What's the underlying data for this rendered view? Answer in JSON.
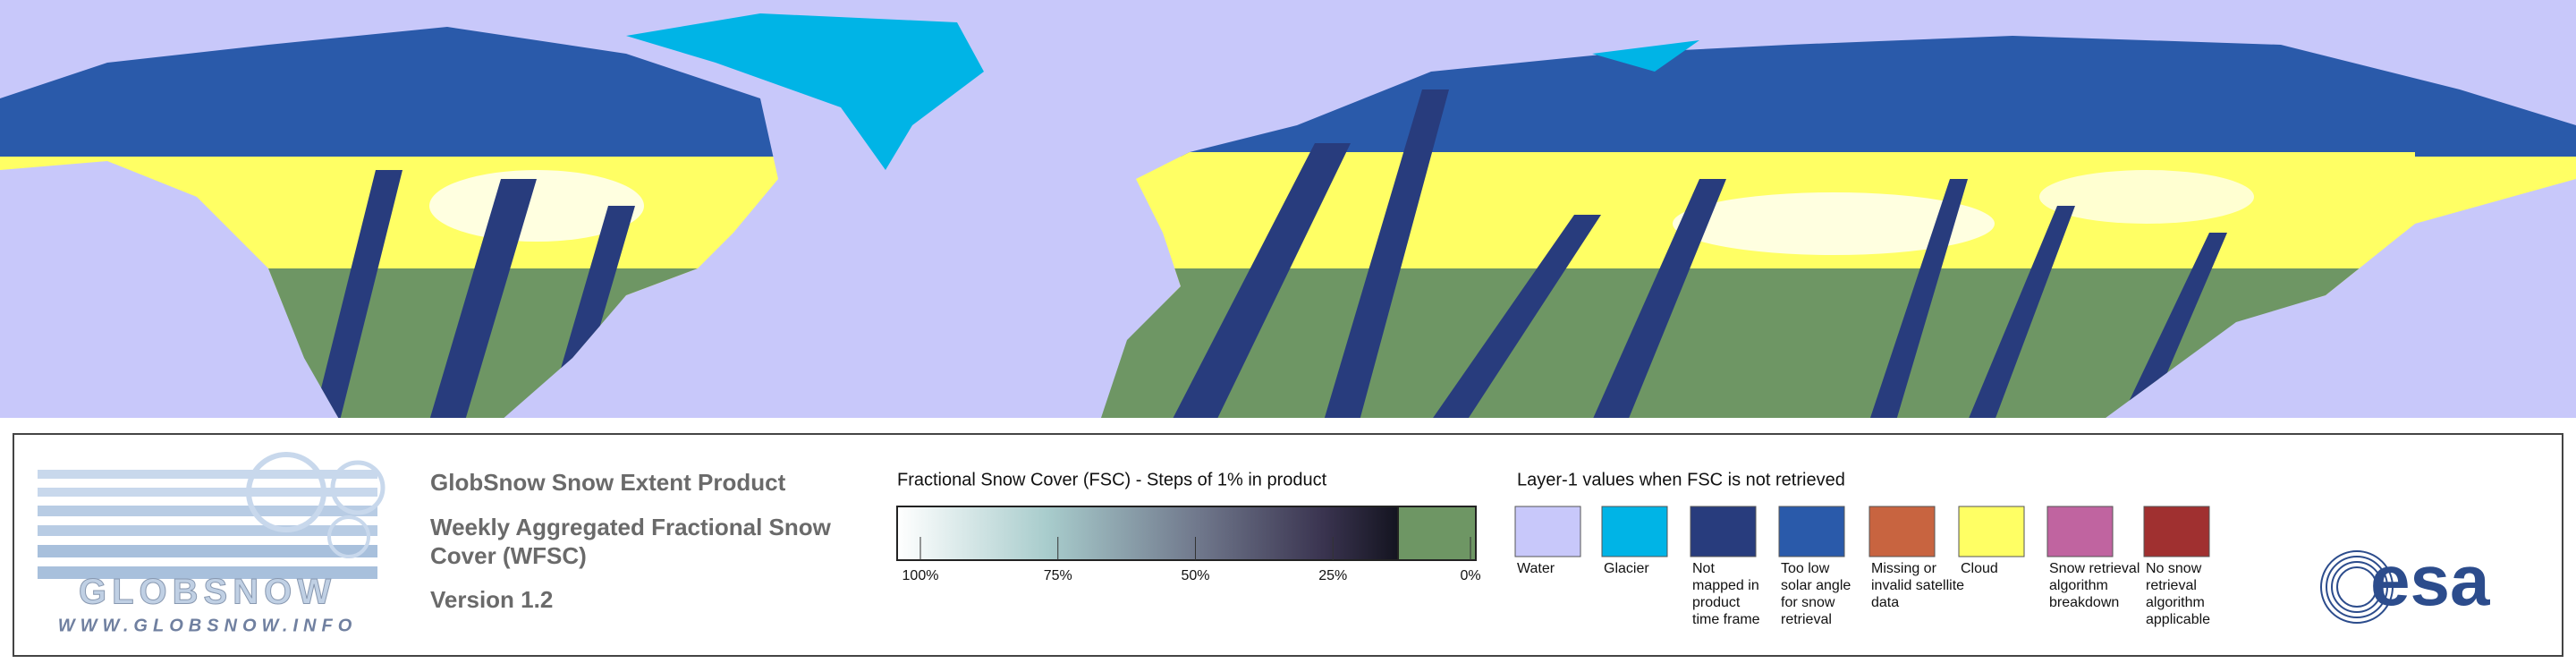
{
  "header": {
    "logo_text": "GLOBSNOW",
    "logo_url": "WWW.GLOBSNOW.INFO"
  },
  "product": {
    "title": "GlobSnow Snow Extent Product",
    "subtitle_lines": [
      "Weekly Aggregated Fractional Snow",
      "Cover (WFSC)"
    ],
    "version": "Version 1.2"
  },
  "fsc_legend": {
    "title": "Fractional Snow Cover (FSC) - Steps of 1% in product",
    "ticks": [
      {
        "value": 100,
        "label": "100%"
      },
      {
        "value": 75,
        "label": "75%"
      },
      {
        "value": 50,
        "label": "50%"
      },
      {
        "value": 25,
        "label": "25%"
      },
      {
        "value": 0,
        "label": "0%"
      }
    ],
    "no_snow_color": "#6e9664"
  },
  "layer1_legend": {
    "title": "Layer-1 values when FSC is not retrieved",
    "items": [
      {
        "color": "#c8c8fa",
        "label_lines": [
          "Water"
        ]
      },
      {
        "color": "#00b4e6",
        "label_lines": [
          "Glacier"
        ]
      },
      {
        "color": "#283c7d",
        "label_lines": [
          "Not",
          "mapped in",
          "product",
          "time frame"
        ]
      },
      {
        "color": "#2a5aaa",
        "label_lines": [
          "Too low",
          "solar angle",
          "for snow",
          "retrieval"
        ]
      },
      {
        "color": "#c86440",
        "label_lines": [
          "Missing or",
          "invalid satellite",
          "data"
        ]
      },
      {
        "color": "#ffff64",
        "label_lines": [
          "Cloud"
        ]
      },
      {
        "color": "#c064a0",
        "label_lines": [
          "Snow retrieval",
          "algorithm",
          "breakdown"
        ]
      },
      {
        "color": "#a03030",
        "label_lines": [
          "No snow",
          "retrieval",
          "algorithm",
          "applicable"
        ]
      }
    ]
  },
  "agency": {
    "logo_text": "esa"
  }
}
